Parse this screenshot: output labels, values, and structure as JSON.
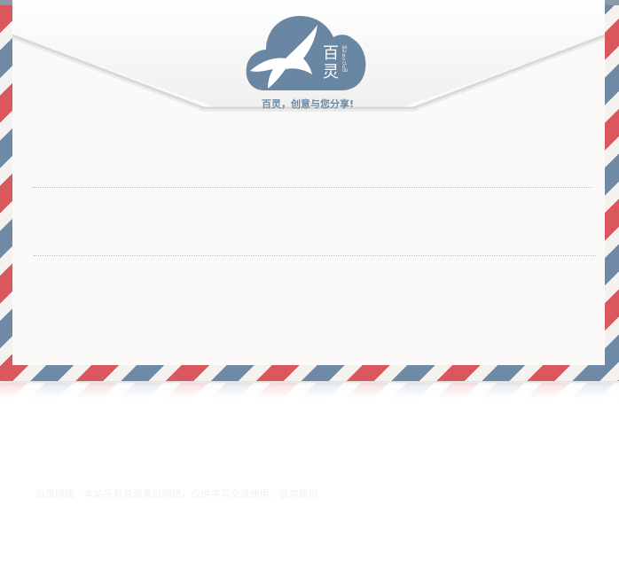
{
  "brand": {
    "logo_char_top": "百",
    "logo_char_bottom": "灵",
    "logo_vertical_text": "BAILING CLOUD",
    "slogan": "百灵，创意与您分享!"
  },
  "form": {
    "line_1_placeholder": "",
    "line_2_placeholder": ""
  },
  "footer": {
    "note": "百灵网络 · 本站所有资源来自网络，仅供学习交流使用，请勿商用"
  },
  "colors": {
    "stripe_red": "#d9575d",
    "stripe_blue": "#6e8aa6",
    "logo_blue": "#6986a3",
    "paper": "#fbfaf8"
  }
}
